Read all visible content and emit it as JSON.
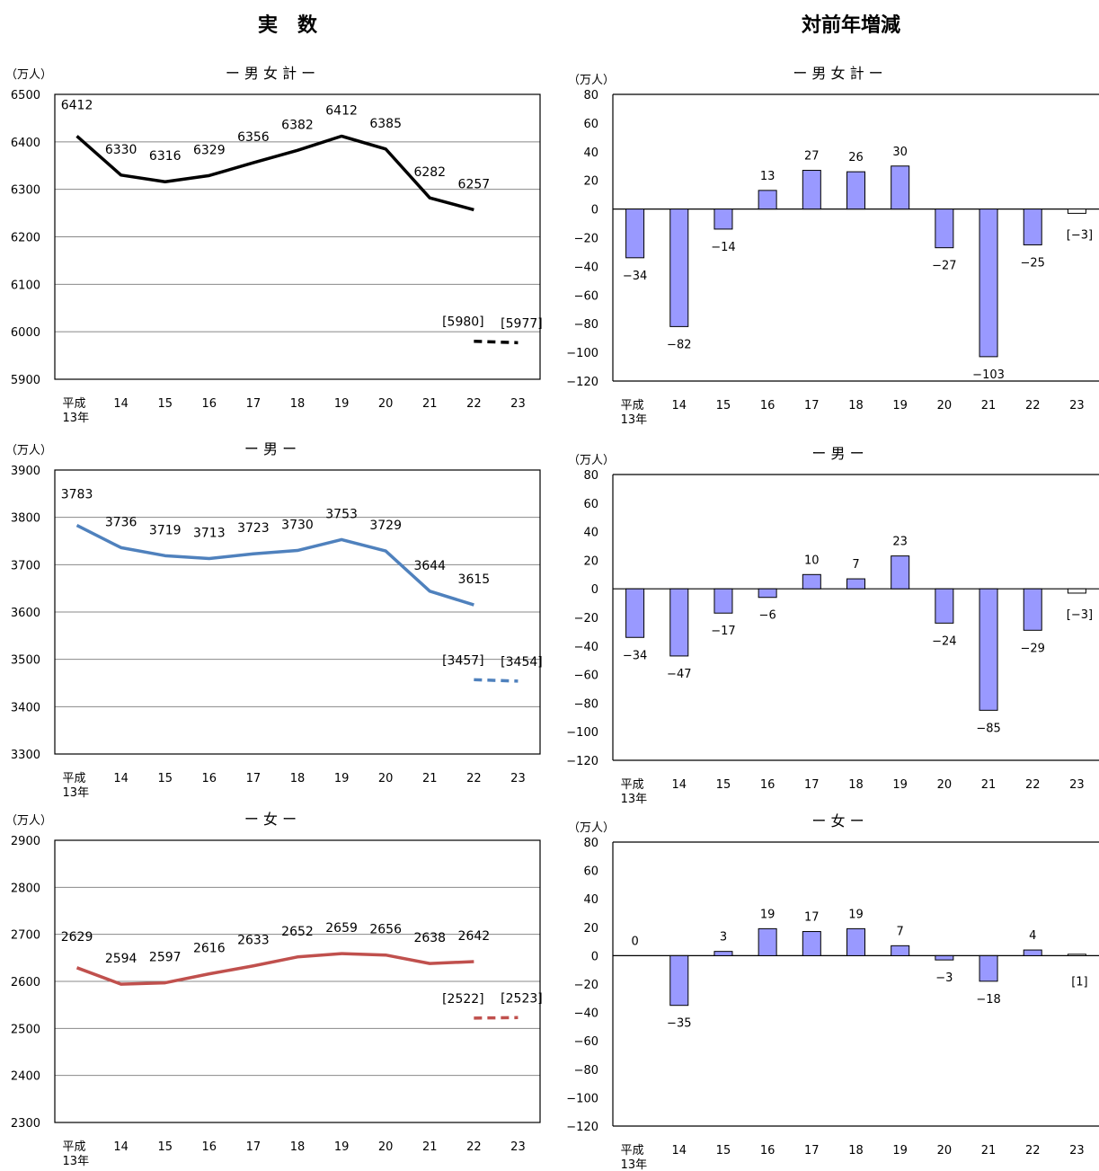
{
  "headers": {
    "left": "実　数",
    "right": "対前年増減"
  },
  "chart_data": [
    {
      "id": "actual-total",
      "type": "line",
      "title": "ー 男 女 計 ー",
      "ylabel": "（万人）",
      "ylim": [
        5900,
        6500
      ],
      "yticks": [
        5900,
        6000,
        6100,
        6200,
        6300,
        6400,
        6500
      ],
      "categories": [
        "平成\n13年",
        "14",
        "15",
        "16",
        "17",
        "18",
        "19",
        "20",
        "21",
        "22",
        "23"
      ],
      "color": "#000000",
      "values": [
        6412,
        6330,
        6316,
        6329,
        6356,
        6382,
        6412,
        6385,
        6282,
        6257
      ],
      "labels": [
        "6412",
        "6330",
        "6316",
        "6329",
        "6356",
        "6382",
        "6412",
        "6385",
        "6282",
        "6257"
      ],
      "dashed_values": [
        5980,
        5977
      ],
      "dashed_labels": [
        "[5980]",
        "[5977]"
      ]
    },
    {
      "id": "diff-total",
      "type": "bar",
      "title": "ー 男 女 計 ー",
      "ylabel": "（万人）",
      "ylim": [
        -120,
        80
      ],
      "yticks": [
        -120,
        -100,
        -80,
        -60,
        -40,
        -20,
        0,
        20,
        40,
        60,
        80
      ],
      "categories": [
        "平成\n13年",
        "14",
        "15",
        "16",
        "17",
        "18",
        "19",
        "20",
        "21",
        "22",
        "23"
      ],
      "bar_color": "#9999ff",
      "values": [
        -34,
        -82,
        -14,
        13,
        27,
        26,
        30,
        -27,
        -103,
        -25,
        -3
      ],
      "labels": [
        "−34",
        "−82",
        "−14",
        "13",
        "27",
        "26",
        "30",
        "−27",
        "−103",
        "−25",
        "[−3]"
      ],
      "hollow_last": true
    },
    {
      "id": "actual-male",
      "type": "line",
      "title": "ー 男 ー",
      "ylabel": "（万人）",
      "ylim": [
        3300,
        3900
      ],
      "yticks": [
        3300,
        3400,
        3500,
        3600,
        3700,
        3800,
        3900
      ],
      "categories": [
        "平成\n13年",
        "14",
        "15",
        "16",
        "17",
        "18",
        "19",
        "20",
        "21",
        "22",
        "23"
      ],
      "color": "#4f81bd",
      "values": [
        3783,
        3736,
        3719,
        3713,
        3723,
        3730,
        3753,
        3729,
        3644,
        3615
      ],
      "labels": [
        "3783",
        "3736",
        "3719",
        "3713",
        "3723",
        "3730",
        "3753",
        "3729",
        "3644",
        "3615"
      ],
      "dashed_values": [
        3457,
        3454
      ],
      "dashed_labels": [
        "[3457]",
        "[3454]"
      ]
    },
    {
      "id": "diff-male",
      "type": "bar",
      "title": "ー 男 ー",
      "ylabel": "（万人）",
      "ylim": [
        -120,
        80
      ],
      "yticks": [
        -120,
        -100,
        -80,
        -60,
        -40,
        -20,
        0,
        20,
        40,
        60,
        80
      ],
      "categories": [
        "平成\n13年",
        "14",
        "15",
        "16",
        "17",
        "18",
        "19",
        "20",
        "21",
        "22",
        "23"
      ],
      "bar_color": "#9999ff",
      "values": [
        -34,
        -47,
        -17,
        -6,
        10,
        7,
        23,
        -24,
        -85,
        -29,
        -3
      ],
      "labels": [
        "−34",
        "−47",
        "−17",
        "−6",
        "10",
        "7",
        "23",
        "−24",
        "−85",
        "−29",
        "[−3]"
      ],
      "hollow_last": true
    },
    {
      "id": "actual-female",
      "type": "line",
      "title": "ー 女 ー",
      "ylabel": "（万人）",
      "ylim": [
        2300,
        2900
      ],
      "yticks": [
        2300,
        2400,
        2500,
        2600,
        2700,
        2800,
        2900
      ],
      "categories": [
        "平成\n13年",
        "14",
        "15",
        "16",
        "17",
        "18",
        "19",
        "20",
        "21",
        "22",
        "23"
      ],
      "color": "#c0504d",
      "values": [
        2629,
        2594,
        2597,
        2616,
        2633,
        2652,
        2659,
        2656,
        2638,
        2642
      ],
      "labels": [
        "2629",
        "2594",
        "2597",
        "2616",
        "2633",
        "2652",
        "2659",
        "2656",
        "2638",
        "2642"
      ],
      "dashed_values": [
        2522,
        2523
      ],
      "dashed_labels": [
        "[2522]",
        "[2523]"
      ]
    },
    {
      "id": "diff-female",
      "type": "bar",
      "title": "ー 女 ー",
      "ylabel": "（万人）",
      "ylim": [
        -120,
        80
      ],
      "yticks": [
        -120,
        -100,
        -80,
        -60,
        -40,
        -20,
        0,
        20,
        40,
        60,
        80
      ],
      "categories": [
        "平成\n13年",
        "14",
        "15",
        "16",
        "17",
        "18",
        "19",
        "20",
        "21",
        "22",
        "23"
      ],
      "bar_color": "#9999ff",
      "values": [
        0,
        -35,
        3,
        19,
        17,
        19,
        7,
        -3,
        -18,
        4,
        1
      ],
      "labels": [
        "0",
        "−35",
        "3",
        "19",
        "17",
        "19",
        "7",
        "−3",
        "−18",
        "4",
        "[1]"
      ],
      "hollow_last": true
    }
  ]
}
